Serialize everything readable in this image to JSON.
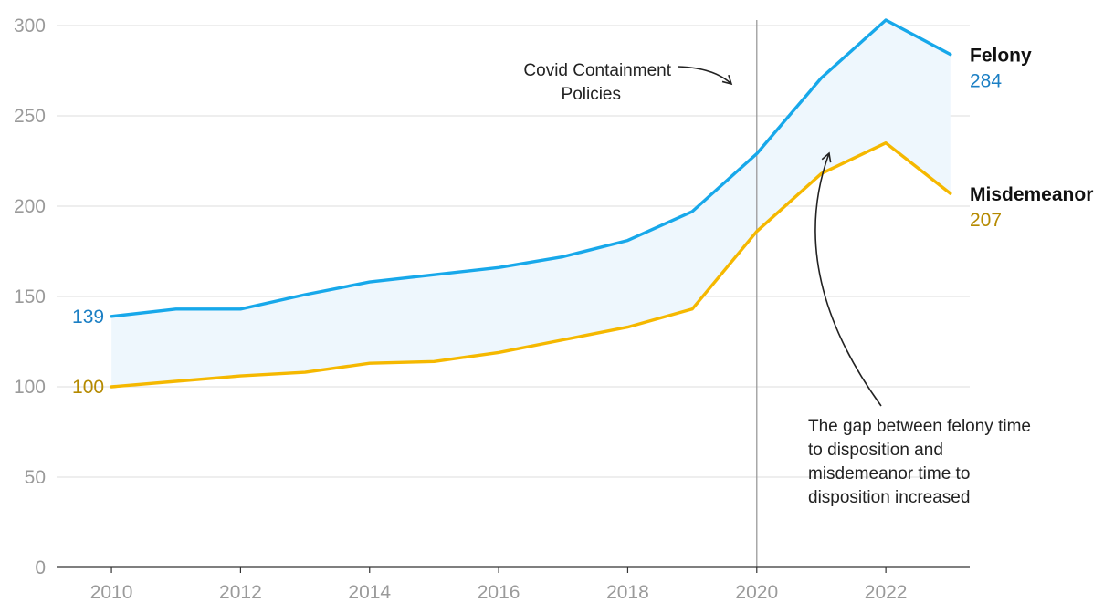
{
  "chart_data": {
    "type": "line",
    "title": "",
    "xlabel": "",
    "ylabel": "",
    "x": [
      2010,
      2011,
      2012,
      2013,
      2014,
      2015,
      2016,
      2017,
      2018,
      2019,
      2020,
      2021,
      2022,
      2023
    ],
    "xticks": [
      "2010",
      "2012",
      "2014",
      "2016",
      "2018",
      "2020",
      "2022"
    ],
    "xtick_values": [
      2010,
      2012,
      2014,
      2016,
      2018,
      2020,
      2022
    ],
    "yticks": [
      "0",
      "50",
      "100",
      "150",
      "200",
      "250",
      "300"
    ],
    "ytick_values": [
      0,
      50,
      100,
      150,
      200,
      250,
      300
    ],
    "xlim": [
      2009.15,
      2023.3
    ],
    "ylim": [
      0,
      303
    ],
    "series": [
      {
        "name": "Felony",
        "color": "#17a8ea",
        "values": [
          139,
          143,
          143,
          151,
          158,
          162,
          166,
          172,
          181,
          197,
          229,
          271,
          303,
          284
        ],
        "start_label": "139",
        "end_label": "284",
        "label_color": "#1b7fc4"
      },
      {
        "name": "Misdemeanor",
        "color": "#f5b800",
        "values": [
          100,
          103,
          106,
          108,
          113,
          114,
          119,
          126,
          133,
          143,
          186,
          218,
          235,
          207
        ],
        "start_label": "100",
        "end_label": "207",
        "label_color": "#b58a00"
      }
    ],
    "fill_between_color": "#eef7fd",
    "vline": {
      "x": 2020,
      "color": "#9a9a9a"
    },
    "annotations": [
      {
        "id": "covid",
        "lines": [
          "Covid Containment",
          "Policies"
        ]
      },
      {
        "id": "gap",
        "lines": [
          "The gap between felony time",
          "to disposition and",
          "misdemeanor time to",
          "disposition increased"
        ]
      }
    ]
  }
}
